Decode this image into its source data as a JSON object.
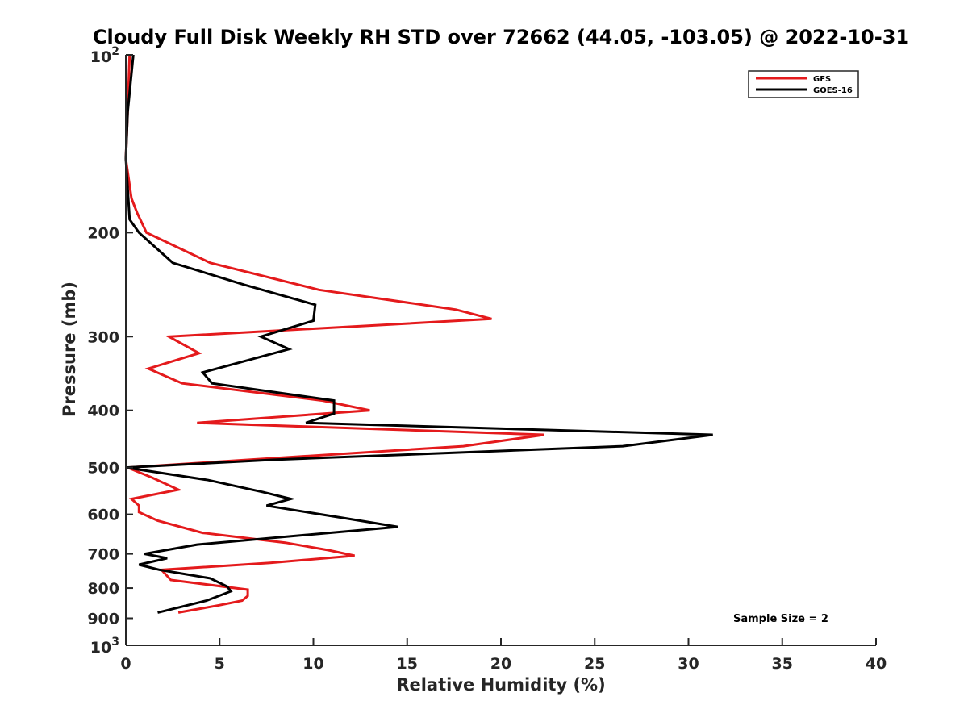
{
  "chart_data": {
    "type": "line",
    "title": "Cloudy Full Disk Weekly RH STD over 72662 (44.05, -103.05) @ 2022-10-31",
    "xlabel": "Relative Humidity (%)",
    "ylabel": "Pressure (mb)",
    "xlim": [
      0,
      40
    ],
    "ylim": [
      100,
      1000
    ],
    "y_scale": "log",
    "y_reversed": true,
    "grid": false,
    "legend_position": "top-right",
    "x_ticks": [
      "0",
      "5",
      "10",
      "15",
      "20",
      "25",
      "30",
      "35",
      "40"
    ],
    "y_ticks": [
      {
        "value": 100,
        "label": "10",
        "sup": "2"
      },
      {
        "value": 200,
        "label": "200",
        "sup": ""
      },
      {
        "value": 300,
        "label": "300",
        "sup": ""
      },
      {
        "value": 400,
        "label": "400",
        "sup": ""
      },
      {
        "value": 500,
        "label": "500",
        "sup": ""
      },
      {
        "value": 600,
        "label": "600",
        "sup": ""
      },
      {
        "value": 700,
        "label": "700",
        "sup": ""
      },
      {
        "value": 800,
        "label": "800",
        "sup": ""
      },
      {
        "value": 900,
        "label": "900",
        "sup": ""
      },
      {
        "value": 1000,
        "label": "10",
        "sup": "3"
      }
    ],
    "annotation": "Sample Size = 2",
    "series": [
      {
        "name": "GFS",
        "color": "#e41a1c",
        "points": [
          [
            0.2,
            100
          ],
          [
            0.1,
            125
          ],
          [
            0.0,
            150
          ],
          [
            0.3,
            175
          ],
          [
            0.6,
            185
          ],
          [
            1.1,
            200
          ],
          [
            4.5,
            225
          ],
          [
            10.3,
            250
          ],
          [
            17.6,
            270
          ],
          [
            19.5,
            280
          ],
          [
            2.3,
            300
          ],
          [
            3.9,
            320
          ],
          [
            1.2,
            340
          ],
          [
            3.0,
            360
          ],
          [
            10.5,
            385
          ],
          [
            13.0,
            400
          ],
          [
            3.8,
            420
          ],
          [
            22.3,
            440
          ],
          [
            18.0,
            460
          ],
          [
            6.5,
            485
          ],
          [
            0.1,
            500
          ],
          [
            1.4,
            520
          ],
          [
            2.8,
            545
          ],
          [
            0.3,
            565
          ],
          [
            0.7,
            580
          ],
          [
            0.7,
            595
          ],
          [
            1.7,
            615
          ],
          [
            4.1,
            645
          ],
          [
            8.5,
            670
          ],
          [
            10.8,
            690
          ],
          [
            12.2,
            705
          ],
          [
            7.7,
            725
          ],
          [
            1.9,
            745
          ],
          [
            2.4,
            775
          ],
          [
            6.5,
            805
          ],
          [
            6.5,
            825
          ],
          [
            6.2,
            840
          ],
          [
            5.0,
            855
          ],
          [
            2.8,
            880
          ]
        ]
      },
      {
        "name": "GOES-16",
        "color": "#000000",
        "points": [
          [
            0.4,
            100
          ],
          [
            0.1,
            125
          ],
          [
            0.0,
            150
          ],
          [
            0.2,
            190
          ],
          [
            0.7,
            200
          ],
          [
            2.5,
            225
          ],
          [
            6.3,
            245
          ],
          [
            10.1,
            265
          ],
          [
            10.0,
            282
          ],
          [
            7.2,
            300
          ],
          [
            8.7,
            315
          ],
          [
            4.1,
            345
          ],
          [
            4.6,
            360
          ],
          [
            11.1,
            385
          ],
          [
            11.1,
            405
          ],
          [
            9.6,
            420
          ],
          [
            31.3,
            440
          ],
          [
            26.5,
            460
          ],
          [
            7.8,
            485
          ],
          [
            0.0,
            500
          ],
          [
            4.4,
            525
          ],
          [
            7.3,
            550
          ],
          [
            8.8,
            565
          ],
          [
            7.5,
            580
          ],
          [
            11.8,
            610
          ],
          [
            14.5,
            630
          ],
          [
            3.8,
            675
          ],
          [
            1.0,
            700
          ],
          [
            2.2,
            712
          ],
          [
            0.7,
            730
          ],
          [
            1.8,
            745
          ],
          [
            4.5,
            770
          ],
          [
            5.4,
            795
          ],
          [
            5.6,
            810
          ],
          [
            4.3,
            840
          ],
          [
            1.7,
            880
          ]
        ]
      }
    ]
  }
}
